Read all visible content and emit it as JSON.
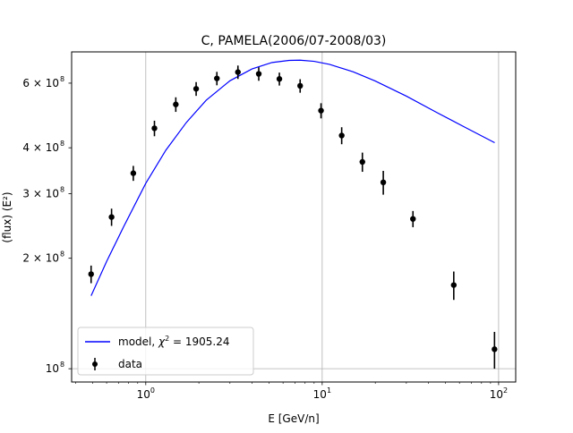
{
  "chart_data": {
    "type": "scatter",
    "title": "C, PAMELA(2006/07-2008/03)",
    "xlabel": "E [GeV/n]",
    "ylabel": "(flux) (E²)",
    "xscale": "log",
    "yscale": "log",
    "xlim": [
      0.38,
      125
    ],
    "ylim": [
      92000000,
      730000000
    ],
    "grid": true,
    "legend_loc": "lower left",
    "x_ticks": [
      {
        "value": 1,
        "base": "10",
        "exp": "0"
      },
      {
        "value": 10,
        "base": "10",
        "exp": "1"
      },
      {
        "value": 100,
        "base": "10",
        "exp": "2"
      }
    ],
    "y_ticks": [
      {
        "value": 100000000,
        "label": "10",
        "exp": "8"
      },
      {
        "value": 200000000,
        "label": "2 × 10",
        "exp": "8"
      },
      {
        "value": 300000000,
        "label": "3 × 10",
        "exp": "8"
      },
      {
        "value": 400000000,
        "label": "4 × 10",
        "exp": "8"
      },
      {
        "value": 600000000,
        "label": "6 × 10",
        "exp": "8"
      }
    ],
    "series": [
      {
        "name": "data",
        "kind": "errorbar",
        "color": "#000000",
        "x": [
          0.49,
          0.64,
          0.85,
          1.12,
          1.48,
          1.93,
          2.53,
          3.33,
          4.37,
          5.72,
          7.5,
          9.85,
          12.9,
          16.9,
          22.2,
          32.7,
          55.7,
          94.8
        ],
        "y": [
          181000000,
          259000000,
          341000000,
          452000000,
          525000000,
          579000000,
          618000000,
          643000000,
          636000000,
          616000000,
          590000000,
          505000000,
          432000000,
          366000000,
          322000000,
          256000000,
          169000000,
          113000000
        ],
        "yerr": [
          10000000,
          14000000,
          16000000,
          22000000,
          24000000,
          25000000,
          26000000,
          27000000,
          27000000,
          25000000,
          25000000,
          24000000,
          23000000,
          22000000,
          24000000,
          13000000,
          15000000,
          13000000
        ]
      },
      {
        "name": "model, χ² = 1905.24",
        "kind": "line",
        "color": "#0000ff",
        "x": [
          0.49,
          0.6,
          0.75,
          1.0,
          1.3,
          1.7,
          2.2,
          3.0,
          4.0,
          5.2,
          6.5,
          7.5,
          9.0,
          11.0,
          15.0,
          20.0,
          30.0,
          45.0,
          65.0,
          95.0
        ],
        "y": [
          158000000,
          196000000,
          244000000,
          320000000,
          394000000,
          469000000,
          539000000,
          609000000,
          656000000,
          683000000,
          692000000,
          693000000,
          688000000,
          675000000,
          644000000,
          608000000,
          553000000,
          498000000,
          454000000,
          413000000
        ]
      }
    ],
    "legend": [
      {
        "label_prefix": "model, ",
        "chi": "χ",
        "sup": "2",
        "label_suffix": " = 1905.24"
      },
      {
        "label": "data"
      }
    ]
  }
}
